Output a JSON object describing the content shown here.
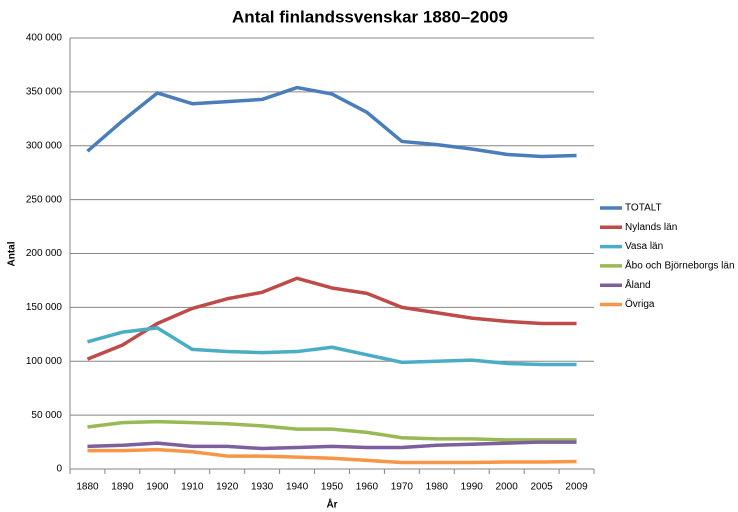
{
  "chart_data": {
    "type": "line",
    "title": "Antal finlandssvenskar 1880–2009",
    "x_label": "År",
    "y_label": "Antal",
    "categories": [
      "1880",
      "1890",
      "1900",
      "1910",
      "1920",
      "1930",
      "1940",
      "1950",
      "1960",
      "1970",
      "1980",
      "1990",
      "2000",
      "2005",
      "2009"
    ],
    "series": [
      {
        "name": "TOTALT",
        "color": "#4a7ebb",
        "values": [
          295000,
          323000,
          349000,
          339000,
          341000,
          343000,
          354000,
          348000,
          331000,
          304000,
          301000,
          297000,
          292000,
          290000,
          291000
        ]
      },
      {
        "name": "Nylands län",
        "color": "#be4b48",
        "values": [
          102000,
          115000,
          135000,
          149000,
          158000,
          164000,
          177000,
          168000,
          163000,
          150000,
          145000,
          140000,
          137000,
          135000,
          135000
        ]
      },
      {
        "name": "Vasa län",
        "color": "#4bacc6",
        "values": [
          118000,
          127000,
          131000,
          111000,
          109000,
          108000,
          109000,
          113000,
          106000,
          99000,
          100000,
          101000,
          98000,
          97000,
          97000
        ]
      },
      {
        "name": "Åbo och Björneborgs län",
        "color": "#98b954",
        "values": [
          39000,
          43000,
          44000,
          43000,
          42000,
          40000,
          37000,
          37000,
          34000,
          29000,
          28000,
          28000,
          27000,
          27000,
          27000
        ]
      },
      {
        "name": "Åland",
        "color": "#7d5fa0",
        "values": [
          21000,
          22000,
          24000,
          21000,
          21000,
          19000,
          20000,
          21000,
          20000,
          20000,
          22000,
          23000,
          24000,
          25000,
          25000
        ]
      },
      {
        "name": "Övriga",
        "color": "#f79646",
        "values": [
          17000,
          17000,
          18000,
          16000,
          12000,
          12000,
          11000,
          10000,
          8000,
          6000,
          6000,
          6000,
          6500,
          6500,
          7000
        ]
      }
    ],
    "ylim": [
      0,
      400000
    ],
    "yticks": [
      0,
      {
        "value": 50000,
        "label": "50 000"
      },
      {
        "value": 100000,
        "label": "100 000"
      },
      {
        "value": 150000,
        "label": "150 000"
      },
      {
        "value": 200000,
        "label": "200 000"
      },
      {
        "value": 250000,
        "label": "250 000"
      },
      {
        "value": 300000,
        "label": "300 000"
      },
      {
        "value": 350000,
        "label": "350 000"
      },
      {
        "value": 400000,
        "label": "400 000"
      }
    ],
    "grid": true,
    "legend": "right"
  }
}
